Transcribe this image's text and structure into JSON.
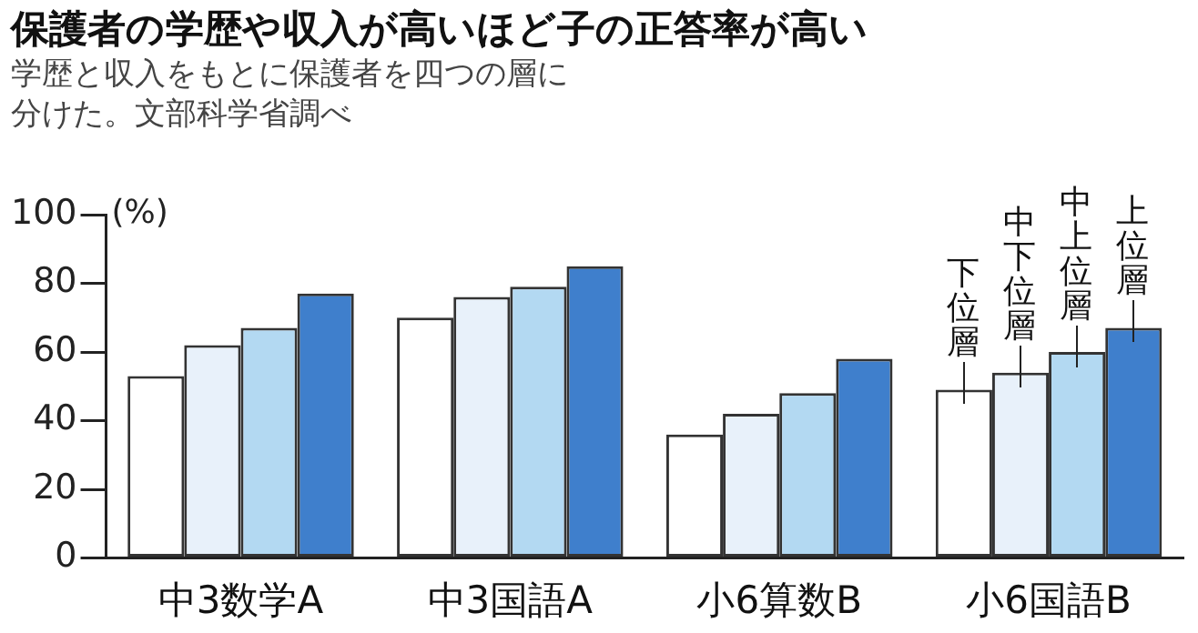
{
  "chart_data": {
    "type": "bar",
    "title": "保護者の学歴や収入が高いほど子の正答率が高い",
    "subtitle": "学歴と収入をもとに保護者を四つの層に分けた。文部科学省調べ",
    "ylabel": "(%)",
    "categories": [
      "中3数学A",
      "中3国語A",
      "小6算数B",
      "小6国語B"
    ],
    "series": [
      {
        "name": "下位層",
        "color": "#ffffff",
        "values": [
          53,
          70,
          36,
          49
        ]
      },
      {
        "name": "中下位層",
        "color": "#e8f1fa",
        "values": [
          62,
          76,
          42,
          54
        ]
      },
      {
        "name": "中上位層",
        "color": "#b3d9f2",
        "values": [
          67,
          79,
          48,
          60
        ]
      },
      {
        "name": "上位層",
        "color": "#3f7fcc",
        "values": [
          77,
          85,
          58,
          67
        ]
      }
    ],
    "ylim": [
      0,
      100
    ],
    "yticks": [
      0,
      20,
      40,
      60,
      80,
      100
    ],
    "grid": false
  }
}
